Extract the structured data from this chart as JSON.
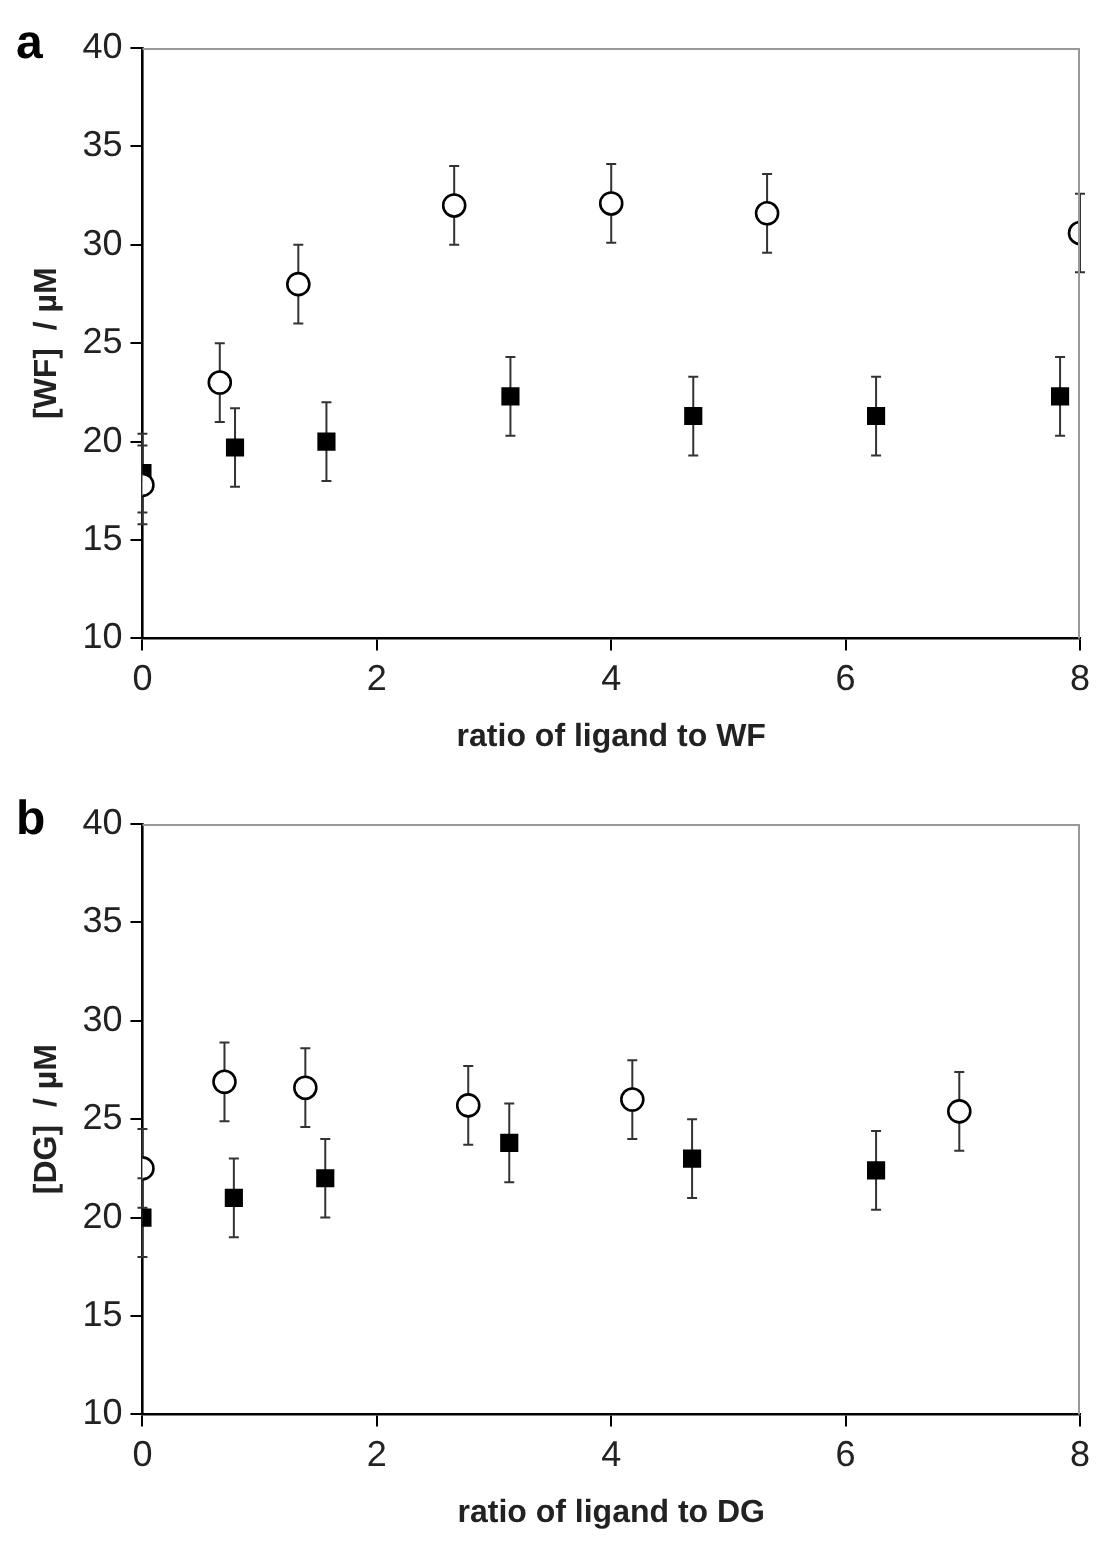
{
  "chart_data": [
    {
      "type": "scatter",
      "title": "a",
      "xlabel": "ratio of ligand to WF",
      "ylabel": "[WF]  / µM",
      "xlim": [
        0,
        8
      ],
      "xticks": [
        0,
        2,
        4,
        6,
        8
      ],
      "ylim": [
        10,
        40
      ],
      "yticks": [
        10,
        15,
        20,
        25,
        30,
        35,
        40
      ],
      "grid": false,
      "legend": false,
      "series": [
        {
          "color": "#000000",
          "marker": "circle",
          "x": [
            0,
            0.66,
            1.33,
            2.66,
            4.0,
            5.33,
            8.0
          ],
          "values": [
            17.8,
            23.0,
            28.0,
            32.0,
            32.1,
            31.6,
            30.6
          ],
          "errors": [
            2,
            2,
            2,
            2,
            2,
            2,
            2
          ]
        },
        {
          "color": "#000000",
          "marker": "square",
          "x": [
            0,
            0.79,
            1.57,
            3.14,
            4.7,
            6.26,
            7.83
          ],
          "values": [
            18.4,
            19.7,
            20.0,
            22.3,
            21.3,
            21.3,
            22.3
          ],
          "errors": [
            2,
            2,
            2,
            2,
            2,
            2,
            2
          ]
        }
      ]
    },
    {
      "type": "scatter",
      "title": "b",
      "xlabel": "ratio of ligand to DG",
      "ylabel": "[DG]  / µM",
      "xlim": [
        0,
        8
      ],
      "xticks": [
        0,
        2,
        4,
        6,
        8
      ],
      "ylim": [
        10,
        40
      ],
      "yticks": [
        10,
        15,
        20,
        25,
        30,
        35,
        40
      ],
      "grid": false,
      "legend": false,
      "series": [
        {
          "color": "#000000",
          "marker": "circle",
          "x": [
            0,
            0.7,
            1.39,
            2.78,
            4.18,
            6.97
          ],
          "values": [
            22.5,
            26.9,
            26.6,
            25.7,
            26.0,
            25.4
          ],
          "errors": [
            2,
            2,
            2,
            2,
            2,
            2
          ]
        },
        {
          "color": "#000000",
          "marker": "square",
          "x": [
            0,
            0.78,
            1.56,
            3.13,
            4.69,
            6.26
          ],
          "values": [
            20.0,
            21.0,
            22.0,
            23.8,
            23.0,
            22.4
          ],
          "errors": [
            2,
            2,
            2,
            2,
            2,
            2
          ]
        }
      ]
    }
  ]
}
